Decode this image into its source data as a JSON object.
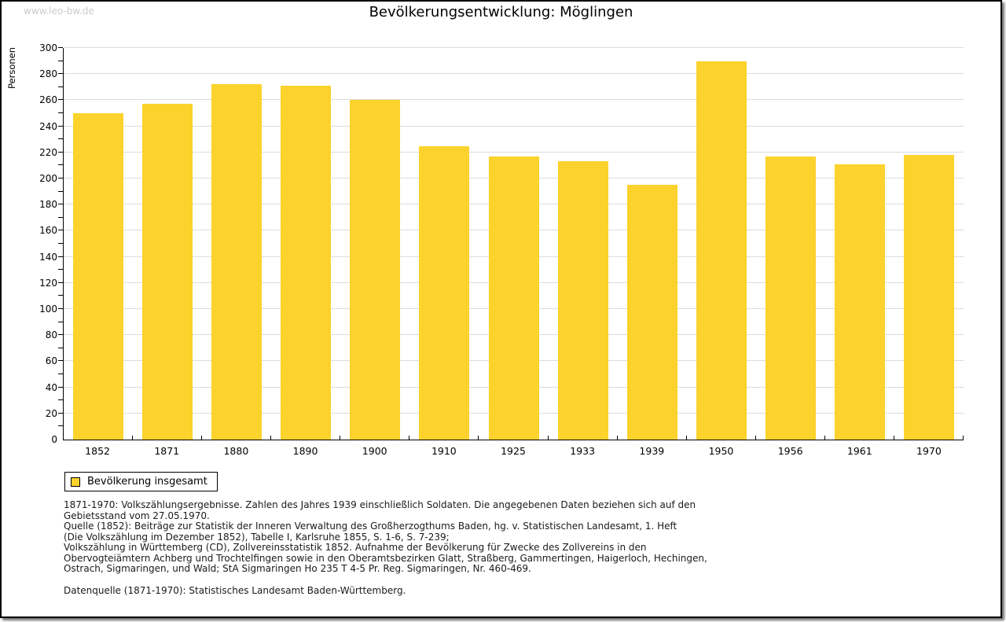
{
  "watermark": "www.leo-bw.de",
  "header": {
    "title": "Bevölkerungsentwicklung: Möglingen"
  },
  "chart_data": {
    "type": "bar",
    "title": "Bevölkerungsentwicklung: Möglingen",
    "xlabel": "",
    "ylabel": "Personen",
    "categories": [
      "1852",
      "1871",
      "1880",
      "1890",
      "1900",
      "1910",
      "1925",
      "1933",
      "1939",
      "1950",
      "1956",
      "1961",
      "1970"
    ],
    "values": [
      250,
      257,
      272,
      271,
      260,
      225,
      217,
      213,
      195,
      290,
      217,
      211,
      218
    ],
    "series_name": "Bevölkerung insgesamt",
    "ylim": [
      0,
      300
    ],
    "ytick_step": 20,
    "minor_tick_step": 10,
    "grid": true,
    "legend_position": "bottom-left",
    "bar_color": "#FCD22C",
    "grid_color": "#dcdcdc",
    "axis_color": "#000000"
  },
  "legend": {
    "label": "Bevölkerung insgesamt"
  },
  "footnotes": {
    "lines": [
      "1871-1970: Volkszählungsergebnisse. Zahlen des Jahres 1939 einschließlich Soldaten. Die angegebenen Daten beziehen sich auf den",
      "Gebietsstand vom 27.05.1970.",
      "Quelle (1852): Beiträge zur Statistik der Inneren Verwaltung des Großherzogthums Baden, hg. v. Statistischen Landesamt, 1. Heft",
      "(Die Volkszählung im Dezember 1852), Tabelle I, Karlsruhe 1855, S. 1-6, S. 7-239;",
      "Volkszählung in Württemberg (CD), Zollvereinsstatistik 1852. Aufnahme der Bevölkerung für Zwecke des Zollvereins in den",
      "Obervogteiämtern Achberg und Trochtelfingen sowie in den Oberamtsbezirken Glatt, Straßberg, Gammertingen, Haigerloch, Hechingen,",
      "Ostrach, Sigmaringen, und Wald; StA Sigmaringen Ho 235 T 4-5 Pr. Reg. Sigmaringen, Nr. 460-469."
    ],
    "datenquelle": "Datenquelle (1871-1970): Statistisches Landesamt Baden-Württemberg."
  }
}
